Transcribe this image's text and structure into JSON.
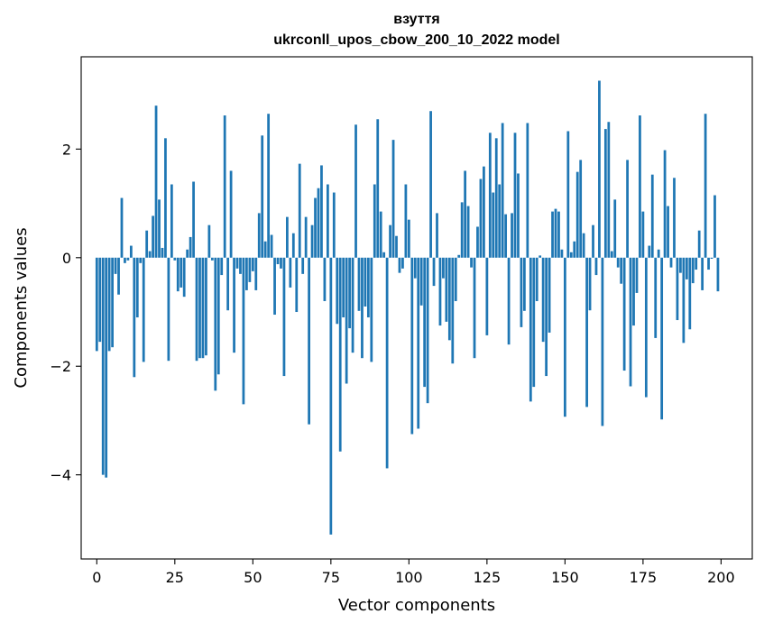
{
  "chart_data": {
    "type": "bar",
    "title": "взуття",
    "subtitle": "ukrconll_upos_cbow_200_10_2022 model",
    "xlabel": "Vector components",
    "ylabel": "Components values",
    "xlim": [
      -5,
      210
    ],
    "ylim": [
      -5.55,
      3.7
    ],
    "x_ticks": [
      0,
      25,
      50,
      75,
      100,
      125,
      150,
      175,
      200
    ],
    "y_ticks": [
      -4,
      -2,
      0,
      2
    ],
    "y_tick_labels": [
      "−4",
      "−2",
      "0",
      "2"
    ],
    "grid": false,
    "legend": "none",
    "bar_color": "#1f77b4",
    "x": [
      0,
      1,
      2,
      3,
      4,
      5,
      6,
      7,
      8,
      9,
      10,
      11,
      12,
      13,
      14,
      15,
      16,
      17,
      18,
      19,
      20,
      21,
      22,
      23,
      24,
      25,
      26,
      27,
      28,
      29,
      30,
      31,
      32,
      33,
      34,
      35,
      36,
      37,
      38,
      39,
      40,
      41,
      42,
      43,
      44,
      45,
      46,
      47,
      48,
      49,
      50,
      51,
      52,
      53,
      54,
      55,
      56,
      57,
      58,
      59,
      60,
      61,
      62,
      63,
      64,
      65,
      66,
      67,
      68,
      69,
      70,
      71,
      72,
      73,
      74,
      75,
      76,
      77,
      78,
      79,
      80,
      81,
      82,
      83,
      84,
      85,
      86,
      87,
      88,
      89,
      90,
      91,
      92,
      93,
      94,
      95,
      96,
      97,
      98,
      99,
      100,
      101,
      102,
      103,
      104,
      105,
      106,
      107,
      108,
      109,
      110,
      111,
      112,
      113,
      114,
      115,
      116,
      117,
      118,
      119,
      120,
      121,
      122,
      123,
      124,
      125,
      126,
      127,
      128,
      129,
      130,
      131,
      132,
      133,
      134,
      135,
      136,
      137,
      138,
      139,
      140,
      141,
      142,
      143,
      144,
      145,
      146,
      147,
      148,
      149,
      150,
      151,
      152,
      153,
      154,
      155,
      156,
      157,
      158,
      159,
      160,
      161,
      162,
      163,
      164,
      165,
      166,
      167,
      168,
      169,
      170,
      171,
      172,
      173,
      174,
      175,
      176,
      177,
      178,
      179,
      180,
      181,
      182,
      183,
      184,
      185,
      186,
      187,
      188,
      189,
      190,
      191,
      192,
      193,
      194,
      195,
      196,
      197,
      198,
      199
    ],
    "values": [
      -1.72,
      -1.55,
      -4.0,
      -4.05,
      -1.72,
      -1.65,
      -0.3,
      -0.68,
      1.1,
      -0.1,
      -0.05,
      0.22,
      -2.2,
      -1.1,
      -0.1,
      -1.92,
      0.5,
      0.12,
      0.77,
      2.8,
      1.07,
      0.18,
      2.2,
      -1.9,
      1.35,
      -0.05,
      -0.62,
      -0.55,
      -0.72,
      0.15,
      0.38,
      1.4,
      -1.9,
      -1.85,
      -1.85,
      -1.8,
      0.6,
      -0.05,
      -2.45,
      -2.15,
      -0.32,
      2.62,
      -0.97,
      1.6,
      -1.75,
      -0.2,
      -0.3,
      -2.7,
      -0.6,
      -0.45,
      -0.25,
      -0.6,
      0.82,
      2.25,
      0.3,
      2.65,
      0.42,
      -1.05,
      -0.12,
      -0.2,
      -2.18,
      0.75,
      -0.55,
      0.45,
      -1.0,
      1.73,
      -0.3,
      0.75,
      -3.07,
      0.6,
      1.1,
      1.28,
      1.7,
      -0.8,
      1.35,
      -5.1,
      1.2,
      -1.22,
      -3.57,
      -1.1,
      -2.32,
      -1.3,
      -1.75,
      2.45,
      -0.98,
      -1.85,
      -0.9,
      -1.1,
      -1.92,
      1.35,
      2.55,
      0.85,
      0.1,
      -3.88,
      0.6,
      2.17,
      0.4,
      -0.28,
      -0.2,
      1.35,
      0.7,
      -3.25,
      -0.38,
      -3.15,
      -0.88,
      -2.38,
      -2.68,
      2.7,
      -0.52,
      0.82,
      -1.25,
      -0.38,
      -1.18,
      -1.52,
      -1.95,
      -0.8,
      0.05,
      1.02,
      1.6,
      0.95,
      -0.18,
      -1.85,
      0.57,
      1.45,
      1.68,
      -1.43,
      2.3,
      1.2,
      2.2,
      1.35,
      2.48,
      0.8,
      -1.6,
      0.82,
      2.3,
      1.55,
      -1.28,
      -0.98,
      2.48,
      -2.65,
      -2.38,
      -0.8,
      0.04,
      -1.55,
      -2.18,
      -1.38,
      0.85,
      0.9,
      0.85,
      0.15,
      -2.93,
      2.33,
      0.1,
      0.3,
      1.58,
      1.8,
      0.45,
      -2.75,
      -0.97,
      0.6,
      -0.32,
      3.26,
      -3.1,
      2.37,
      2.5,
      0.12,
      1.07,
      -0.18,
      -0.48,
      -2.08,
      1.8,
      -2.37,
      -1.25,
      -0.65,
      2.62,
      0.85,
      -2.57,
      0.22,
      1.53,
      -1.48,
      0.15,
      -2.98,
      1.98,
      0.95,
      -0.18,
      1.47,
      -1.15,
      -0.28,
      -1.57,
      -0.4,
      -1.32,
      -0.47,
      -0.22,
      0.5,
      -0.6,
      2.65,
      -0.22,
      -0.02,
      1.15,
      -0.62
    ]
  }
}
